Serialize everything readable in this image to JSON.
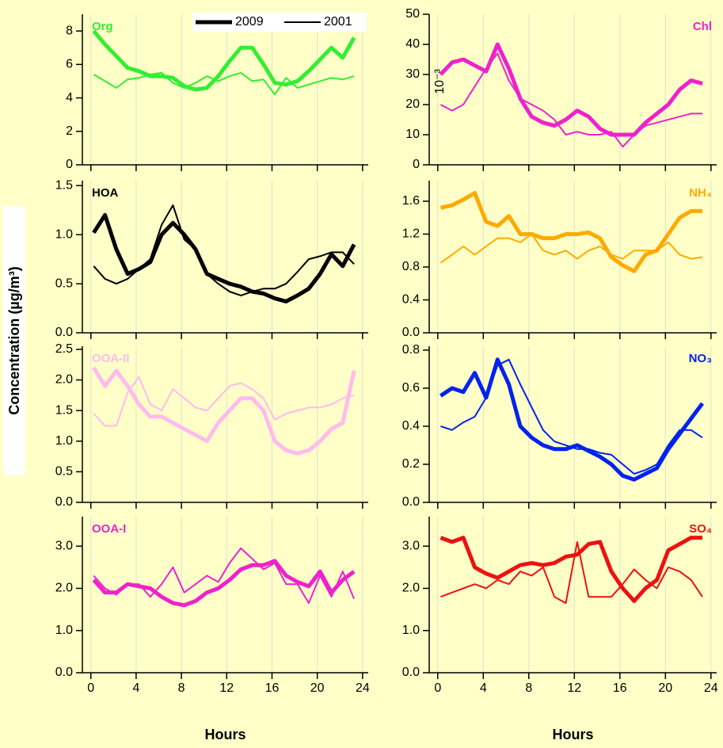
{
  "figure": {
    "ylabel": "Concentration (µg/m³)"
  },
  "chart_data": [
    {
      "type": "line",
      "label": "Org",
      "color": "#33ee33",
      "legend": "upper right",
      "x": [
        0.25,
        1.25,
        2.25,
        3.25,
        4.25,
        5.25,
        6.25,
        7.25,
        8.25,
        9.25,
        10.25,
        11.25,
        12.25,
        13.25,
        14.25,
        15.25,
        16.25,
        17.25,
        18.25,
        19.25,
        20.25,
        21.25,
        22.25,
        23.25
      ],
      "xlim": [
        -0.75,
        24.5
      ],
      "xticks": [
        0,
        4,
        8,
        12,
        16,
        20,
        24
      ],
      "grid": "x",
      "ylim": [
        0,
        9
      ],
      "yticks": [
        0,
        2,
        4,
        6,
        8
      ],
      "series": [
        {
          "name": "2009",
          "values": [
            8,
            7.2,
            6.5,
            5.8,
            5.6,
            5.3,
            5.3,
            5.2,
            4.7,
            4.5,
            4.6,
            5.3,
            6.2,
            7.0,
            7.0,
            6.0,
            4.9,
            4.8,
            5.0,
            5.6,
            6.3,
            7.0,
            6.4,
            7.6
          ]
        },
        {
          "name": "2001",
          "values": [
            5.4,
            5.0,
            4.6,
            5.1,
            5.2,
            5.4,
            5.5,
            4.9,
            4.6,
            4.9,
            5.3,
            5.0,
            5.3,
            5.5,
            5.0,
            5.1,
            4.2,
            5.2,
            4.6,
            4.8,
            5.0,
            5.2,
            5.1,
            5.3
          ]
        }
      ]
    },
    {
      "type": "line",
      "label": "Chl",
      "color": "#ee22cc",
      "annotation": "10⁻³",
      "x": [
        0.25,
        1.25,
        2.25,
        3.25,
        4.25,
        5.25,
        6.25,
        7.25,
        8.25,
        9.25,
        10.25,
        11.25,
        12.25,
        13.25,
        14.25,
        15.25,
        16.25,
        17.25,
        18.25,
        19.25,
        20.25,
        21.25,
        22.25,
        23.25
      ],
      "xlim": [
        -0.75,
        24.5
      ],
      "xticks": [
        0,
        4,
        8,
        12,
        16,
        20,
        24
      ],
      "grid": "x",
      "ylim": [
        0,
        50
      ],
      "yticks": [
        0,
        10,
        20,
        30,
        40,
        50
      ],
      "series": [
        {
          "values": [
            30,
            34,
            35,
            33,
            31,
            40,
            32,
            22,
            16,
            14,
            13,
            15,
            18,
            16,
            12,
            10,
            10,
            10,
            14,
            17,
            20,
            25,
            28,
            27
          ]
        },
        {
          "values": [
            20,
            18,
            20,
            26,
            32,
            37,
            28,
            22,
            20,
            18,
            15,
            10,
            11,
            10,
            10,
            11,
            6,
            10,
            13,
            14,
            15,
            16,
            17,
            17
          ]
        }
      ]
    },
    {
      "type": "line",
      "label": "HOA",
      "color": "#000000",
      "x": [
        0.25,
        1.25,
        2.25,
        3.25,
        4.25,
        5.25,
        6.25,
        7.25,
        8.25,
        9.25,
        10.25,
        11.25,
        12.25,
        13.25,
        14.25,
        15.25,
        16.25,
        17.25,
        18.25,
        19.25,
        20.25,
        21.25,
        22.25,
        23.25
      ],
      "xlim": [
        -0.75,
        24.5
      ],
      "xticks": [
        0,
        4,
        8,
        12,
        16,
        20,
        24
      ],
      "grid": "x",
      "ylim": [
        0,
        1.55
      ],
      "yticks": [
        {
          "value": 0,
          "label": "0.0"
        },
        0.5,
        {
          "value": 1,
          "label": "1.0"
        },
        1.5
      ],
      "series": [
        {
          "values": [
            1.02,
            1.2,
            0.85,
            0.6,
            0.65,
            0.72,
            1.0,
            1.12,
            1.0,
            0.85,
            0.6,
            0.55,
            0.5,
            0.47,
            0.42,
            0.4,
            0.35,
            0.32,
            0.38,
            0.45,
            0.6,
            0.8,
            0.68,
            0.9
          ]
        },
        {
          "values": [
            0.68,
            0.55,
            0.5,
            0.55,
            0.65,
            0.75,
            1.1,
            1.3,
            0.95,
            0.85,
            0.6,
            0.5,
            0.42,
            0.38,
            0.42,
            0.45,
            0.45,
            0.5,
            0.62,
            0.75,
            0.78,
            0.82,
            0.82,
            0.7
          ]
        }
      ]
    },
    {
      "type": "line",
      "label": "NH₄",
      "color": "#ffaa00",
      "x": [
        0.25,
        1.25,
        2.25,
        3.25,
        4.25,
        5.25,
        6.25,
        7.25,
        8.25,
        9.25,
        10.25,
        11.25,
        12.25,
        13.25,
        14.25,
        15.25,
        16.25,
        17.25,
        18.25,
        19.25,
        20.25,
        21.25,
        22.25,
        23.25
      ],
      "xlim": [
        -0.75,
        24.5
      ],
      "xticks": [
        0,
        4,
        8,
        12,
        16,
        20,
        24
      ],
      "grid": "x",
      "ylim": [
        0,
        1.85
      ],
      "yticks": [
        {
          "value": 0,
          "label": "0.0"
        },
        0.4,
        0.8,
        1.2,
        1.6
      ],
      "series": [
        {
          "values": [
            1.52,
            1.55,
            1.62,
            1.7,
            1.35,
            1.3,
            1.42,
            1.2,
            1.2,
            1.15,
            1.15,
            1.2,
            1.2,
            1.22,
            1.15,
            0.92,
            0.82,
            0.75,
            0.95,
            1.0,
            1.2,
            1.4,
            1.48,
            1.48
          ]
        },
        {
          "values": [
            0.85,
            0.95,
            1.05,
            0.95,
            1.05,
            1.15,
            1.15,
            1.1,
            1.2,
            1.0,
            0.95,
            1.0,
            0.9,
            1.0,
            1.05,
            0.95,
            0.9,
            1.0,
            1.0,
            1.0,
            1.1,
            0.95,
            0.9,
            0.92
          ]
        }
      ]
    },
    {
      "type": "line",
      "label": "OOA-II",
      "color": "#ffbbee",
      "x": [
        0.25,
        1.25,
        2.25,
        3.25,
        4.25,
        5.25,
        6.25,
        7.25,
        8.25,
        9.25,
        10.25,
        11.25,
        12.25,
        13.25,
        14.25,
        15.25,
        16.25,
        17.25,
        18.25,
        19.25,
        20.25,
        21.25,
        22.25,
        23.25
      ],
      "xlim": [
        -0.75,
        24.5
      ],
      "xticks": [
        0,
        4,
        8,
        12,
        16,
        20,
        24
      ],
      "grid": "x",
      "ylim": [
        0,
        2.55
      ],
      "yticks": [
        {
          "value": 0,
          "label": "0.0"
        },
        0.5,
        {
          "value": 1,
          "label": "1.0"
        },
        1.5,
        {
          "value": 2,
          "label": "2.0"
        },
        2.5
      ],
      "series": [
        {
          "values": [
            2.2,
            1.9,
            2.15,
            1.9,
            1.6,
            1.4,
            1.4,
            1.3,
            1.2,
            1.1,
            1.0,
            1.3,
            1.5,
            1.7,
            1.7,
            1.5,
            1.0,
            0.85,
            0.8,
            0.85,
            1.0,
            1.2,
            1.3,
            2.15
          ]
        },
        {
          "values": [
            1.45,
            1.25,
            1.25,
            1.8,
            2.05,
            1.6,
            1.5,
            1.85,
            1.7,
            1.55,
            1.5,
            1.7,
            1.9,
            1.95,
            1.85,
            1.7,
            1.35,
            1.45,
            1.5,
            1.55,
            1.55,
            1.6,
            1.7,
            1.75
          ]
        }
      ]
    },
    {
      "type": "line",
      "label": "NO₃",
      "color": "#0022ee",
      "x": [
        0.25,
        1.25,
        2.25,
        3.25,
        4.25,
        5.25,
        6.25,
        7.25,
        8.25,
        9.25,
        10.25,
        11.25,
        12.25,
        13.25,
        14.25,
        15.25,
        16.25,
        17.25,
        18.25,
        19.25,
        20.25,
        21.25,
        22.25,
        23.25
      ],
      "xlim": [
        -0.75,
        24.5
      ],
      "xticks": [
        0,
        4,
        8,
        12,
        16,
        20,
        24
      ],
      "grid": "x",
      "ylim": [
        0,
        0.82
      ],
      "yticks": [
        {
          "value": 0,
          "label": "0.0"
        },
        0.2,
        0.4,
        0.6,
        0.8
      ],
      "series": [
        {
          "values": [
            0.56,
            0.6,
            0.58,
            0.68,
            0.55,
            0.75,
            0.62,
            0.4,
            0.34,
            0.3,
            0.28,
            0.28,
            0.3,
            0.27,
            0.24,
            0.2,
            0.14,
            0.12,
            0.15,
            0.18,
            0.28,
            0.36,
            0.44,
            0.52
          ]
        },
        {
          "values": [
            0.4,
            0.38,
            0.42,
            0.45,
            0.55,
            0.72,
            0.75,
            0.62,
            0.5,
            0.38,
            0.32,
            0.3,
            0.28,
            0.28,
            0.26,
            0.25,
            0.2,
            0.15,
            0.17,
            0.2,
            0.3,
            0.38,
            0.38,
            0.34
          ]
        }
      ]
    },
    {
      "type": "line",
      "label": "OOA-I",
      "color": "#ee22cc",
      "xlabel": "Hours",
      "x": [
        0.25,
        1.25,
        2.25,
        3.25,
        4.25,
        5.25,
        6.25,
        7.25,
        8.25,
        9.25,
        10.25,
        11.25,
        12.25,
        13.25,
        14.25,
        15.25,
        16.25,
        17.25,
        18.25,
        19.25,
        20.25,
        21.25,
        22.25,
        23.25
      ],
      "xlim": [
        -0.75,
        24.5
      ],
      "xticks": [
        0,
        4,
        8,
        12,
        16,
        20,
        24
      ],
      "grid": "x",
      "ylim": [
        0,
        3.7
      ],
      "yticks": [
        {
          "value": 0,
          "label": "0.0"
        },
        {
          "value": 1,
          "label": "1.0"
        },
        {
          "value": 2,
          "label": "2.0"
        },
        {
          "value": 3,
          "label": "3.0"
        }
      ],
      "series": [
        {
          "values": [
            2.2,
            1.9,
            1.9,
            2.1,
            2.05,
            2.0,
            1.8,
            1.65,
            1.6,
            1.7,
            1.9,
            2.0,
            2.2,
            2.45,
            2.55,
            2.55,
            2.65,
            2.3,
            2.15,
            2.05,
            2.4,
            1.9,
            2.2,
            2.4
          ]
        },
        {
          "values": [
            2.3,
            2.0,
            1.85,
            2.1,
            2.1,
            1.8,
            2.1,
            2.5,
            1.9,
            2.1,
            2.3,
            2.15,
            2.6,
            2.95,
            2.7,
            2.45,
            2.6,
            2.1,
            2.1,
            1.65,
            2.3,
            1.8,
            2.4,
            1.75
          ]
        }
      ]
    },
    {
      "type": "line",
      "label": "SO₄",
      "color": "#ee1111",
      "xlabel": "Hours",
      "x": [
        0.25,
        1.25,
        2.25,
        3.25,
        4.25,
        5.25,
        6.25,
        7.25,
        8.25,
        9.25,
        10.25,
        11.25,
        12.25,
        13.25,
        14.25,
        15.25,
        16.25,
        17.25,
        18.25,
        19.25,
        20.25,
        21.25,
        22.25,
        23.25
      ],
      "xlim": [
        -0.75,
        24.5
      ],
      "xticks": [
        0,
        4,
        8,
        12,
        16,
        20,
        24
      ],
      "grid": "x",
      "ylim": [
        0,
        3.7
      ],
      "yticks": [
        {
          "value": 0,
          "label": "0.0"
        },
        {
          "value": 1,
          "label": "1.0"
        },
        {
          "value": 2,
          "label": "2.0"
        },
        {
          "value": 3,
          "label": "3.0"
        }
      ],
      "series": [
        {
          "values": [
            3.2,
            3.1,
            3.2,
            2.5,
            2.35,
            2.25,
            2.4,
            2.55,
            2.6,
            2.55,
            2.6,
            2.75,
            2.8,
            3.05,
            3.1,
            2.4,
            2.0,
            1.7,
            2.0,
            2.2,
            2.9,
            3.05,
            3.2,
            3.2
          ]
        },
        {
          "values": [
            1.8,
            1.9,
            2.0,
            2.1,
            2.0,
            2.2,
            2.1,
            2.4,
            2.3,
            2.5,
            1.8,
            1.65,
            3.1,
            1.8,
            1.8,
            1.8,
            2.1,
            2.45,
            2.2,
            2.0,
            2.5,
            2.4,
            2.2,
            1.8
          ]
        }
      ]
    }
  ]
}
